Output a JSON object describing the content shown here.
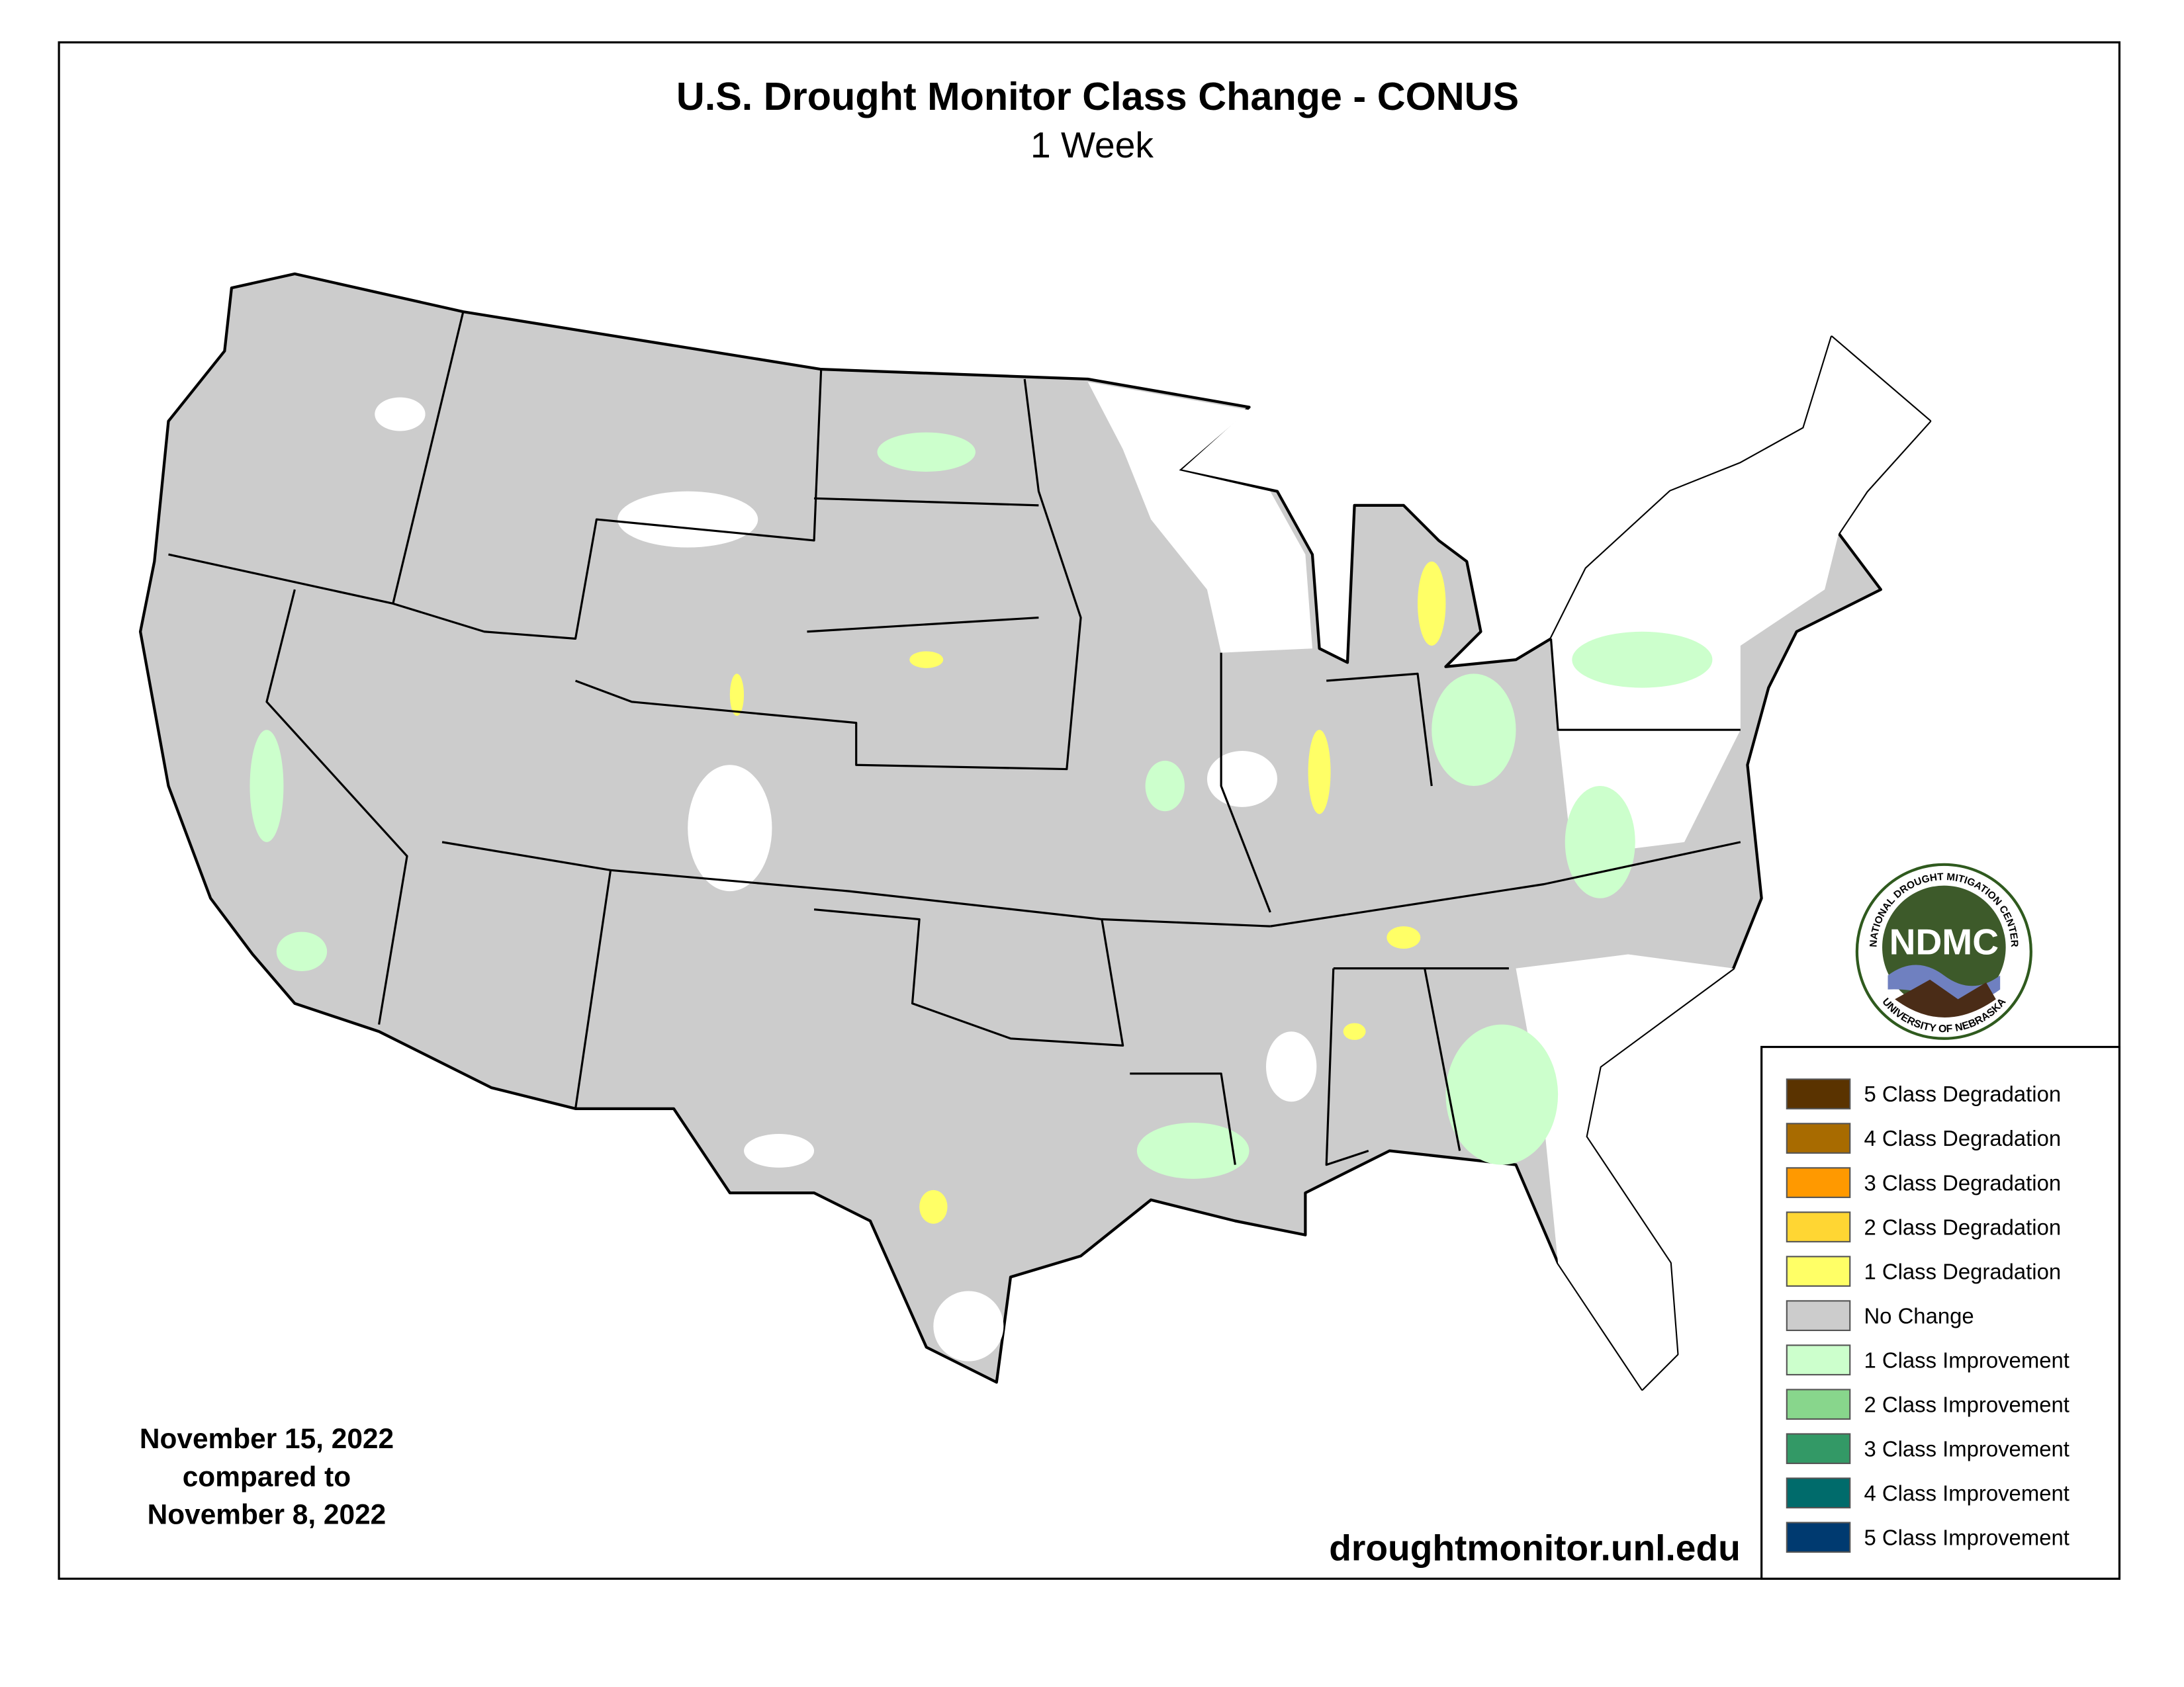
{
  "header": {
    "title": "U.S. Drought Monitor Class Change - CONUS",
    "subtitle": "1 Week"
  },
  "date_note": {
    "lines": [
      "November 15, 2022",
      "compared to",
      "November 8, 2022"
    ]
  },
  "source": "droughtmonitor.unl.edu",
  "logo": {
    "ring_top": "NATIONAL DROUGHT MITIGATION CENTER",
    "center": "NDMC",
    "ring_bottom": "UNIVERSITY OF NEBRASKA"
  },
  "legend": {
    "items": [
      {
        "label": "5 Class Degradation",
        "color": "#5a3300"
      },
      {
        "label": "4 Class Degradation",
        "color": "#a86b00"
      },
      {
        "label": "3 Class Degradation",
        "color": "#ff9900"
      },
      {
        "label": "2 Class Degradation",
        "color": "#ffd633"
      },
      {
        "label": "1 Class Degradation",
        "color": "#ffff66"
      },
      {
        "label": "No Change",
        "color": "#cccccc"
      },
      {
        "label": "1 Class Improvement",
        "color": "#ccffcc"
      },
      {
        "label": "2 Class Improvement",
        "color": "#88d68c"
      },
      {
        "label": "3 Class Improvement",
        "color": "#339966"
      },
      {
        "label": "4 Class Improvement",
        "color": "#006b6b"
      },
      {
        "label": "5 Class Improvement",
        "color": "#003a70"
      }
    ]
  }
}
